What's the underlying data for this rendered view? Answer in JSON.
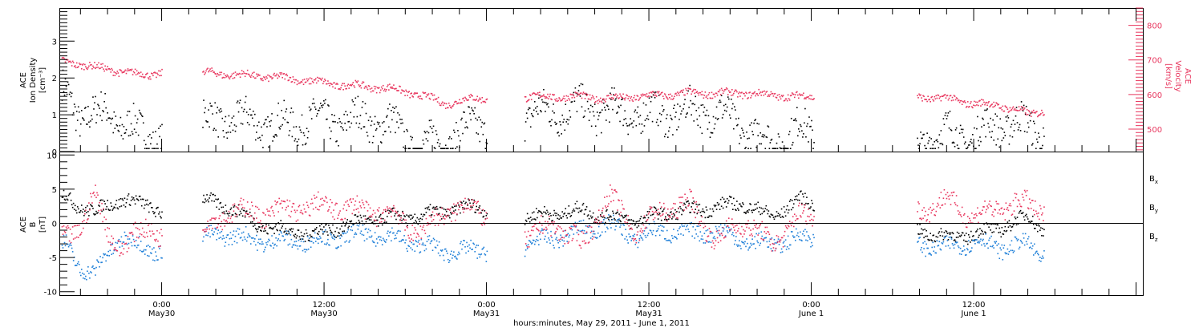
{
  "xaxis": {
    "title": "hours:minutes, May 29, 2011 - June  1, 2011",
    "ticks": [
      {
        "hour": 0,
        "time": "0:00",
        "date": "May30"
      },
      {
        "hour": 12,
        "time": "12:00",
        "date": "May30"
      },
      {
        "hour": 24,
        "time": "0:00",
        "date": "May31"
      },
      {
        "hour": 36,
        "time": "12:00",
        "date": "May31"
      },
      {
        "hour": 48,
        "time": "0:00",
        "date": "June 1"
      },
      {
        "hour": 60,
        "time": "12:00",
        "date": "June 1"
      }
    ],
    "range_hours": [
      -7.5,
      72.5
    ]
  },
  "colors": {
    "black": "#000000",
    "blue": "#1e7fd8",
    "pink": "#e8365e"
  },
  "top_panel": {
    "left_label_lines": [
      "ACE",
      "Ion Density",
      "[cm⁻³]"
    ],
    "right_label_lines": [
      "ACE",
      "Velocity",
      "[km/s]"
    ],
    "left_ticks": [
      "0",
      "1",
      "2",
      "3"
    ],
    "right_ticks": [
      "500",
      "600",
      "700",
      "800"
    ]
  },
  "bottom_panel": {
    "label_lines": [
      "ACE",
      "B",
      "[nT]"
    ],
    "ticks": [
      "-10",
      "-5",
      "0",
      "5",
      "10"
    ],
    "legend": [
      {
        "label": "B",
        "sub": "x",
        "color": "#000000"
      },
      {
        "label": "B",
        "sub": "y",
        "color": "#1e7fd8"
      },
      {
        "label": "B",
        "sub": "z",
        "color": "#e8365e"
      }
    ]
  },
  "chart_data": [
    {
      "type": "scatter",
      "xlabel": "hours:minutes, May 29, 2011 - June  1, 2011",
      "ylabel": "ACE Ion Density [cm⁻³]",
      "y2label": "ACE Velocity [km/s]",
      "xlim": [
        -7.5,
        72.5
      ],
      "ylim": [
        0,
        3.9
      ],
      "y2lim": [
        435,
        850
      ],
      "data_gaps_hours": [
        [
          0.1,
          2.8
        ],
        [
          24.0,
          2.8
        ],
        [
          48.1,
          7.7
        ],
        [
          65.2,
          72.5
        ]
      ],
      "series": [
        {
          "name": "Ion Density",
          "axis": "left",
          "x": [
            -7,
            -6,
            -5,
            -4,
            -3,
            -2,
            -1,
            0,
            3,
            5,
            7,
            9,
            11,
            13,
            15,
            17,
            19,
            21,
            23,
            27,
            29,
            31,
            33,
            35,
            37,
            39,
            41,
            43,
            45,
            47,
            56,
            58,
            60,
            62,
            64,
            65
          ],
          "y": [
            1.6,
            1.0,
            0.9,
            1.2,
            0.7,
            0.6,
            0.5,
            0.4,
            0.8,
            0.9,
            0.8,
            0.7,
            0.9,
            0.8,
            0.9,
            0.7,
            0.1,
            0.3,
            0.7,
            1.0,
            1.1,
            1.2,
            1.1,
            1.0,
            1.0,
            1.1,
            1.1,
            0.6,
            0.2,
            0.6,
            0.3,
            0.5,
            0.4,
            0.8,
            0.7,
            0.5
          ]
        },
        {
          "name": "Velocity",
          "axis": "right",
          "x": [
            -7,
            -6,
            -5,
            -4,
            -3,
            -2,
            -1,
            0,
            3,
            5,
            7,
            9,
            11,
            13,
            15,
            17,
            19,
            21,
            23,
            27,
            29,
            31,
            33,
            35,
            37,
            39,
            41,
            43,
            45,
            47,
            56,
            58,
            60,
            62,
            64,
            65
          ],
          "y": [
            695,
            690,
            680,
            675,
            668,
            660,
            660,
            665,
            665,
            660,
            655,
            650,
            640,
            630,
            625,
            618,
            600,
            575,
            590,
            595,
            595,
            595,
            590,
            595,
            600,
            605,
            605,
            605,
            600,
            595,
            595,
            590,
            575,
            570,
            545,
            555
          ]
        }
      ]
    },
    {
      "type": "scatter",
      "xlabel": "hours:minutes, May 29, 2011 - June  1, 2011",
      "ylabel": "ACE B [nT]",
      "xlim": [
        -7.5,
        72.5
      ],
      "ylim": [
        -10.5,
        10.5
      ],
      "series": [
        {
          "name": "Bx",
          "x": [
            -7,
            -6,
            -5,
            -4,
            -3,
            -2,
            -1,
            0,
            3,
            5,
            7,
            9,
            11,
            13,
            15,
            17,
            19,
            21,
            23,
            27,
            29,
            31,
            33,
            35,
            37,
            39,
            41,
            43,
            45,
            47,
            56,
            58,
            60,
            62,
            64,
            65
          ],
          "y": [
            4.0,
            2.5,
            1.5,
            3.0,
            3.5,
            3.0,
            3.0,
            1.5,
            3.5,
            2.5,
            0.0,
            -1.0,
            -1.5,
            -0.5,
            0.5,
            1.0,
            1.0,
            2.0,
            2.5,
            1.0,
            1.5,
            2.0,
            1.0,
            0.5,
            1.5,
            2.0,
            2.5,
            3.0,
            1.0,
            3.5,
            -1.0,
            -2.0,
            -1.5,
            -0.5,
            1.0,
            -0.5
          ]
        },
        {
          "name": "By",
          "x": [
            -7,
            -6,
            -5,
            -4,
            -3,
            -2,
            -1,
            0,
            3,
            5,
            7,
            9,
            11,
            13,
            15,
            17,
            19,
            21,
            23,
            27,
            29,
            31,
            33,
            35,
            37,
            39,
            41,
            43,
            45,
            47,
            56,
            58,
            60,
            62,
            64,
            65
          ],
          "y": [
            -3.0,
            -6.5,
            -7.5,
            -4.0,
            -2.0,
            -3.0,
            -3.5,
            -4.0,
            -2.0,
            -1.5,
            -2.5,
            -2.5,
            -2.5,
            -2.0,
            -1.5,
            -2.0,
            -3.0,
            -4.0,
            -4.0,
            -3.0,
            -2.0,
            -1.0,
            0.0,
            -2.0,
            -1.0,
            -1.5,
            -1.0,
            -2.5,
            -3.0,
            -2.0,
            -3.0,
            -3.5,
            -2.5,
            -3.5,
            -3.0,
            -4.5
          ]
        },
        {
          "name": "Bz",
          "x": [
            -7,
            -6,
            -5,
            -4,
            -3,
            -2,
            -1,
            0,
            3,
            5,
            7,
            9,
            11,
            13,
            15,
            17,
            19,
            21,
            23,
            27,
            29,
            31,
            33,
            35,
            37,
            39,
            41,
            43,
            45,
            47,
            56,
            58,
            60,
            62,
            64,
            65
          ],
          "y": [
            -2.0,
            0.0,
            4.0,
            -1.0,
            -3.5,
            -2.0,
            0.0,
            -2.0,
            -1.0,
            2.0,
            1.5,
            2.0,
            2.5,
            2.5,
            2.0,
            1.5,
            -1.5,
            2.0,
            2.5,
            -2.0,
            0.0,
            -3.0,
            4.0,
            -1.0,
            2.0,
            3.0,
            -2.5,
            0.5,
            -3.0,
            1.0,
            2.0,
            3.5,
            1.0,
            2.5,
            3.0,
            2.0
          ]
        }
      ]
    }
  ]
}
